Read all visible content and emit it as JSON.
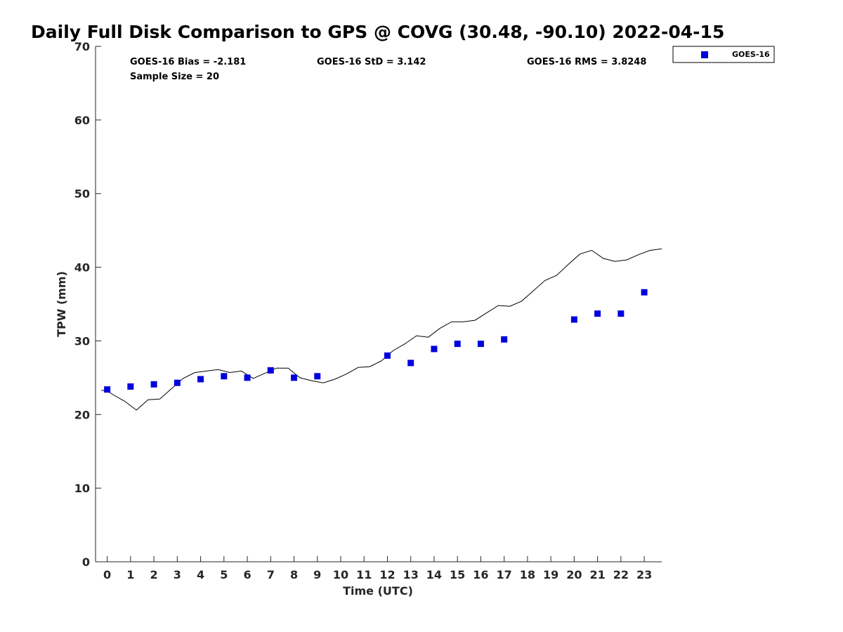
{
  "chart_data": {
    "type": "scatter",
    "title": "Daily Full Disk Comparison to GPS @ COVG (30.48, -90.10) 2022-04-15",
    "xlabel": "Time (UTC)",
    "ylabel": "TPW (mm)",
    "xlim": [
      -0.5,
      23.75
    ],
    "ylim": [
      0,
      70
    ],
    "x_ticks": [
      0,
      1,
      2,
      3,
      4,
      5,
      6,
      7,
      8,
      9,
      10,
      11,
      12,
      13,
      14,
      15,
      16,
      17,
      18,
      19,
      20,
      21,
      22,
      23
    ],
    "y_ticks": [
      0,
      10,
      20,
      30,
      40,
      50,
      60,
      70
    ],
    "grid": false,
    "legend_position": "top-right, outside plot",
    "series": [
      {
        "name": "GOES-16",
        "kind": "scatter",
        "marker": "square",
        "color": "#0000dd",
        "x": [
          0,
          1,
          2,
          3,
          4,
          5,
          6,
          7,
          8,
          9,
          12,
          13,
          14,
          15,
          16,
          17,
          20,
          21,
          22,
          23
        ],
        "y": [
          23.4,
          23.8,
          24.1,
          24.3,
          24.8,
          25.2,
          25.0,
          26.0,
          25.0,
          25.2,
          28.0,
          27.0,
          28.9,
          29.6,
          29.6,
          30.2,
          32.9,
          33.7,
          33.7,
          36.6
        ]
      },
      {
        "kind": "line",
        "color": "#000000",
        "x": [
          -0.25,
          0.0,
          0.25,
          0.75,
          1.25,
          1.75,
          2.25,
          2.75,
          3.25,
          3.75,
          4.25,
          4.75,
          5.25,
          5.75,
          6.25,
          6.75,
          7.25,
          7.75,
          8.25,
          8.75,
          9.25,
          9.75,
          10.25,
          10.75,
          11.25,
          11.75,
          12.25,
          12.75,
          13.25,
          13.75,
          14.25,
          14.75,
          15.25,
          15.75,
          16.25,
          16.75,
          17.25,
          17.75,
          18.25,
          18.75,
          19.25,
          19.75,
          20.25,
          20.75,
          21.25,
          21.75,
          22.25,
          22.75,
          23.25,
          23.75
        ],
        "y": [
          23.3,
          23.2,
          22.7,
          21.8,
          20.6,
          22.0,
          22.1,
          23.5,
          24.9,
          25.7,
          25.9,
          26.1,
          25.7,
          25.9,
          24.9,
          25.6,
          26.3,
          26.3,
          25.0,
          24.6,
          24.3,
          24.8,
          25.5,
          26.4,
          26.5,
          27.3,
          28.7,
          29.6,
          30.7,
          30.5,
          31.7,
          32.6,
          32.6,
          32.8,
          33.8,
          34.8,
          34.7,
          35.4,
          36.8,
          38.2,
          38.9,
          40.4,
          41.8,
          42.3,
          41.2,
          40.8,
          41.0,
          41.7,
          42.3,
          42.5
        ]
      }
    ],
    "stats": {
      "bias": "GOES-16 Bias = -2.181",
      "sample_size": "Sample Size = 20",
      "std": "GOES-16 StD = 3.142",
      "rms": "GOES-16 RMS = 3.8248"
    },
    "legend_label": "GOES-16"
  }
}
